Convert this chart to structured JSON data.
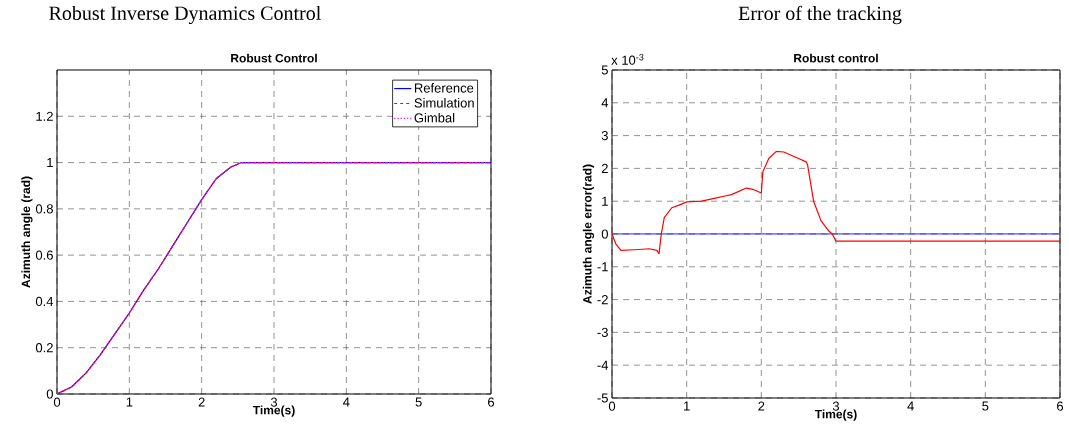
{
  "chart_data": [
    {
      "type": "line",
      "title": "Robust Inverse Dynamics Control",
      "subtitle": "Robust Control",
      "xlabel": "Time(s)",
      "ylabel": "Azimuth angle (rad)",
      "xlim": [
        0,
        6
      ],
      "ylim": [
        0,
        1.4
      ],
      "xticks": [
        0,
        1,
        2,
        3,
        4,
        5,
        6
      ],
      "yticks": [
        0,
        0.2,
        0.4,
        0.6,
        0.8,
        1,
        1.2
      ],
      "grid": true,
      "legend": "top right",
      "marker": "none",
      "x": [
        0,
        0.2,
        0.4,
        0.6,
        0.8,
        1.0,
        1.2,
        1.4,
        1.6,
        1.8,
        2.0,
        2.2,
        2.4,
        2.55,
        3,
        4,
        5,
        6
      ],
      "series": [
        {
          "name": "Reference",
          "color": "#0000ff",
          "line_style": "solid",
          "values": [
            0,
            0.03,
            0.09,
            0.17,
            0.26,
            0.35,
            0.45,
            0.54,
            0.64,
            0.74,
            0.84,
            0.93,
            0.98,
            1.0,
            1.0,
            1.0,
            1.0,
            1.0
          ]
        },
        {
          "name": "Simulation",
          "color": "#ff0000",
          "line_style": "dashed",
          "values": [
            0,
            0.03,
            0.09,
            0.17,
            0.26,
            0.35,
            0.45,
            0.54,
            0.64,
            0.74,
            0.84,
            0.93,
            0.98,
            1.0,
            1.0,
            1.0,
            1.0,
            1.0
          ]
        },
        {
          "name": "Gimbal",
          "color": "#ff00ff",
          "line_style": "dotted",
          "values": [
            0,
            0.03,
            0.09,
            0.17,
            0.26,
            0.35,
            0.45,
            0.54,
            0.64,
            0.74,
            0.84,
            0.93,
            0.98,
            1.0,
            1.0,
            1.0,
            1.0,
            1.0
          ]
        }
      ]
    },
    {
      "type": "line",
      "title": "Error of the tracking",
      "subtitle": "Robust control",
      "xlabel": "Time(s)",
      "ylabel": "Azimuth angle error(rad)",
      "annotations": [
        "x 10$^{-3}$"
      ],
      "xlim": [
        0,
        6
      ],
      "ylim": [
        -5,
        5
      ],
      "xticks": [
        0,
        1,
        2,
        3,
        4,
        5,
        6
      ],
      "yticks": [
        -5,
        -4,
        -3,
        -2,
        -1,
        0,
        1,
        2,
        3,
        4,
        5
      ],
      "grid": true,
      "marker": "none",
      "series": [
        {
          "color": "#0000ff",
          "line_style": "solid",
          "x": [
            0,
            6
          ],
          "values": [
            0,
            0
          ]
        },
        {
          "color": "#ff0000",
          "line_style": "solid",
          "x": [
            0,
            0.05,
            0.12,
            0.3,
            0.5,
            0.6,
            0.63,
            0.66,
            0.7,
            0.8,
            0.9,
            1.0,
            1.2,
            1.4,
            1.5,
            1.6,
            1.8,
            1.9,
            2.0,
            2.02,
            2.1,
            2.2,
            2.3,
            2.4,
            2.5,
            2.6,
            2.62,
            2.7,
            2.8,
            2.9,
            2.95,
            3.0,
            6
          ],
          "values": [
            0,
            -0.3,
            -0.5,
            -0.48,
            -0.45,
            -0.5,
            -0.6,
            0,
            0.5,
            0.8,
            0.88,
            0.98,
            1.0,
            1.1,
            1.15,
            1.2,
            1.4,
            1.35,
            1.25,
            1.9,
            2.3,
            2.52,
            2.5,
            2.4,
            2.3,
            2.2,
            2.1,
            1.0,
            0.4,
            0.1,
            0,
            -0.22,
            -0.22
          ]
        }
      ]
    }
  ]
}
